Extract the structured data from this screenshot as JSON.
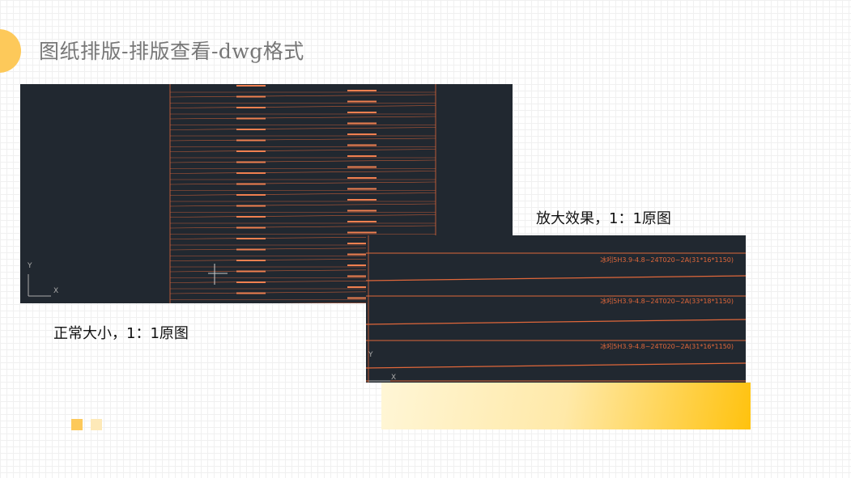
{
  "title": "图纸排版-排版查看-dwg格式",
  "captions": {
    "normal": "正常大小，1：1原图",
    "zoomed": "放大效果，1：1原图"
  },
  "zoom_view": {
    "labels": [
      "冰吲5H3.9-4.8~24T020~2A(31*16*1150)",
      "冰吲5H3.9-4.8~24T020~2A(33*18*1150)",
      "冰吲5H3.9-4.8~24T020~2A(31*16*1150)"
    ]
  },
  "axes": {
    "y": "Y",
    "x": "X"
  },
  "colors": {
    "cad_bg": "#212830",
    "line": "#e0673a",
    "accent": "#fdc95a"
  }
}
